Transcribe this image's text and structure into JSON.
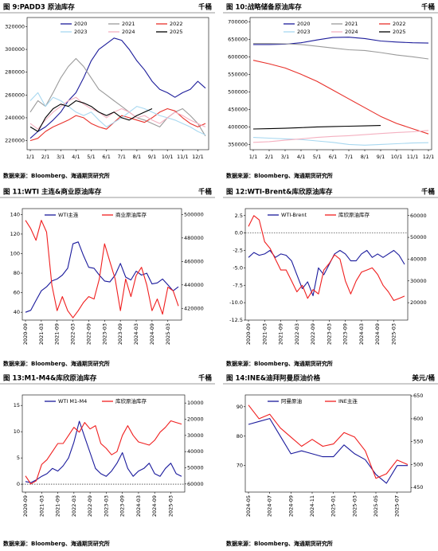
{
  "chart_data": [
    {
      "type": "line",
      "title": "图 9:PADD3 原油库存",
      "unit": "千桶",
      "source": "数据来源：Bloomberg、海通期货研究所",
      "categories": [
        "1/1",
        null,
        "2/1",
        null,
        "3/1",
        null,
        "4/1",
        null,
        "5/1",
        null,
        "6/1",
        null,
        "7/1",
        null,
        "8/1",
        null,
        "9/1",
        null,
        "10/1",
        null,
        "11/1",
        null,
        "12/1",
        null
      ],
      "ylim": [
        212000,
        328000
      ],
      "yticks": [
        220000,
        240000,
        260000,
        280000,
        300000,
        320000
      ],
      "series": [
        {
          "name": "2020",
          "color": "#1c1c9a",
          "values": [
            222000,
            228000,
            232000,
            238000,
            245000,
            255000,
            262000,
            275000,
            290000,
            300000,
            305000,
            310000,
            308000,
            300000,
            290000,
            282000,
            272000,
            265000,
            262000,
            258000,
            262000,
            265000,
            272000,
            266000
          ]
        },
        {
          "name": "2021",
          "color": "#9a9a9a",
          "values": [
            245000,
            255000,
            250000,
            262000,
            275000,
            285000,
            292000,
            285000,
            275000,
            265000,
            260000,
            255000,
            250000,
            245000,
            240000,
            238000,
            235000,
            232000,
            240000,
            245000,
            248000,
            242000,
            235000,
            224000
          ]
        },
        {
          "name": "2022",
          "color": "#e8302a",
          "values": [
            220000,
            222000,
            228000,
            232000,
            235000,
            238000,
            242000,
            240000,
            235000,
            232000,
            230000,
            236000,
            242000,
            240000,
            238000,
            236000,
            240000,
            245000,
            248000,
            246000,
            240000,
            235000,
            232000,
            235000
          ]
        },
        {
          "name": "2023",
          "color": "#a8d8f0",
          "values": [
            255000,
            262000,
            250000,
            258000,
            255000,
            250000,
            245000,
            242000,
            245000,
            238000,
            232000,
            236000,
            240000,
            245000,
            250000,
            248000,
            245000,
            242000,
            240000,
            238000,
            235000,
            232000,
            228000,
            225000
          ]
        },
        {
          "name": "2024",
          "color": "#f4b0c0",
          "values": [
            235000,
            230000,
            238000,
            245000,
            250000,
            255000,
            258000,
            252000,
            248000,
            245000,
            240000,
            245000,
            248000,
            245000,
            240000,
            242000,
            238000,
            235000,
            240000,
            245000,
            242000,
            238000,
            235000,
            232000
          ]
        },
        {
          "name": "2025",
          "color": "#000000",
          "values": [
            232000,
            228000,
            240000,
            248000,
            252000,
            250000,
            255000,
            253000,
            250000,
            245000,
            242000,
            245000,
            240000,
            238000,
            242000,
            245000,
            248000,
            null,
            null,
            null,
            null,
            null,
            null,
            null
          ]
        }
      ]
    },
    {
      "type": "line",
      "title": "图 10:战略储备原油库存",
      "unit": "千桶",
      "source": "数据来源：Bloomberg、海通期货研究所",
      "categories": [
        "1/1",
        "2/1",
        "3/1",
        "4/1",
        "5/1",
        "6/1",
        "7/1",
        "8/1",
        "9/1",
        "10/1",
        "11/1",
        "12/1"
      ],
      "ylim": [
        335000,
        712000
      ],
      "yticks": [
        350000,
        400000,
        450000,
        500000,
        550000,
        600000,
        650000,
        700000
      ],
      "series": [
        {
          "name": "2020",
          "color": "#1c1c9a",
          "values": [
            635000,
            635000,
            636000,
            640000,
            648000,
            655000,
            656000,
            652000,
            645000,
            642000,
            640000,
            639000
          ]
        },
        {
          "name": "2021",
          "color": "#9a9a9a",
          "values": [
            638000,
            638000,
            637000,
            635000,
            630000,
            625000,
            620000,
            618000,
            612000,
            605000,
            600000,
            594000
          ]
        },
        {
          "name": "2022",
          "color": "#e8302a",
          "values": [
            590000,
            580000,
            568000,
            550000,
            530000,
            505000,
            480000,
            455000,
            430000,
            410000,
            395000,
            380000
          ]
        },
        {
          "name": "2023",
          "color": "#a8d8f0",
          "values": [
            370000,
            368000,
            366000,
            364000,
            360000,
            356000,
            350000,
            348000,
            350000,
            352000,
            354000,
            355000
          ]
        },
        {
          "name": "2024",
          "color": "#f4b0c0",
          "values": [
            356000,
            358000,
            362000,
            366000,
            370000,
            373000,
            375000,
            378000,
            381000,
            384000,
            386000,
            390000
          ]
        },
        {
          "name": "2025",
          "color": "#000000",
          "values": [
            394000,
            395000,
            396000,
            398000,
            400000,
            401000,
            402000,
            403000,
            404000,
            null,
            null,
            null
          ]
        }
      ]
    },
    {
      "type": "line",
      "title": "图 11:WTI 主连&商业原油库存",
      "unit": "千桶",
      "source": "数据来源：Bloomberg、海通期货研究所",
      "categories": [
        "2020-09",
        null,
        null,
        "2021-03",
        null,
        null,
        "2021-09",
        null,
        null,
        "2022-03",
        null,
        null,
        "2022-09",
        null,
        null,
        "2023-03",
        null,
        null,
        "2023-09",
        null,
        null,
        "2024-03",
        null,
        null,
        "2024-09",
        null,
        null,
        "2025-03",
        null,
        null
      ],
      "ylim": [
        32,
        146
      ],
      "yticks": [
        40,
        60,
        80,
        100,
        120,
        140
      ],
      "y2lim": [
        410000,
        505000
      ],
      "y2ticks": [
        420000,
        440000,
        460000,
        480000,
        500000
      ],
      "series": [
        {
          "name": "WTI主连",
          "color": "#1a1a9c",
          "values": [
            40,
            42,
            52,
            62,
            66,
            72,
            74,
            78,
            85,
            110,
            112,
            98,
            86,
            85,
            78,
            72,
            71,
            78,
            90,
            76,
            73,
            82,
            78,
            80,
            69,
            70,
            74,
            68,
            62,
            66
          ]
        },
        {
          "name": "商业原油库存",
          "color": "#f01e1e",
          "axis": "y2",
          "values": [
            495000,
            488000,
            478000,
            495000,
            485000,
            440000,
            418000,
            430000,
            418000,
            412000,
            418000,
            425000,
            430000,
            428000,
            445000,
            475000,
            460000,
            445000,
            418000,
            445000,
            430000,
            448000,
            455000,
            440000,
            418000,
            428000,
            415000,
            438000,
            435000,
            422000
          ]
        }
      ]
    },
    {
      "type": "line",
      "title": "图 12:WTI-Brent&库欣原油库存",
      "unit": "千桶",
      "source": "数据来源：Bloomberg、海通期货研究所",
      "categories": [
        "2020-09",
        null,
        null,
        "2021-03",
        null,
        null,
        "2021-09",
        null,
        null,
        "2022-03",
        null,
        null,
        "2022-09",
        null,
        null,
        "2023-03",
        null,
        null,
        "2023-09",
        null,
        null,
        "2024-03",
        null,
        null,
        "2024-09",
        null,
        null,
        "2025-03",
        null,
        null
      ],
      "ylim": [
        -12.5,
        3.5
      ],
      "yticks": [
        -12.5,
        {
          "value": -10,
          "label": "-10.0"
        },
        -7.5,
        {
          "value": -5,
          "label": "-5.0"
        },
        -2.5,
        {
          "value": 0,
          "label": "0.0"
        },
        2.5
      ],
      "hline": 0,
      "y2lim": [
        12000,
        63200
      ],
      "y2ticks": [
        20000,
        30000,
        40000,
        50000,
        60000
      ],
      "series": [
        {
          "name": "WTI-Brent",
          "color": "#1a1a9c",
          "values": [
            -3.5,
            -2.8,
            -3.2,
            -3,
            -2.5,
            -3.5,
            -3,
            -3.2,
            -4,
            -6,
            -8,
            -7,
            -9,
            -5,
            -6,
            -4.5,
            -3,
            -2.5,
            -3,
            -4,
            -4,
            -3,
            -2.5,
            -3.5,
            -3,
            -3.5,
            -3,
            -2.5,
            -3.2,
            -4.5
          ]
        },
        {
          "name": "库欣原油库存",
          "color": "#f01e1e",
          "axis": "y2",
          "values": [
            55000,
            60000,
            58000,
            48000,
            45000,
            40000,
            35000,
            35000,
            30000,
            25000,
            28000,
            22000,
            26000,
            24000,
            35000,
            38000,
            42000,
            40000,
            30000,
            24000,
            30000,
            34000,
            35000,
            36000,
            33000,
            28000,
            25000,
            21000,
            22000,
            23000
          ]
        }
      ]
    },
    {
      "type": "line",
      "title": "图 13:M1-M4&库欣原油库存",
      "unit": "千桶",
      "source": "数据来源：Bloomberg、海通期货研究所",
      "categories": [
        "2020-09",
        null,
        null,
        "2021-03",
        null,
        null,
        "2021-09",
        null,
        null,
        "2022-03",
        null,
        null,
        "2022-09",
        null,
        null,
        "2023-03",
        null,
        null,
        "2023-09",
        null,
        null,
        "2024-03",
        null,
        null,
        "2024-09",
        null,
        null,
        "2025-03",
        null,
        null
      ],
      "ylim": [
        -1.5,
        17
      ],
      "yticks": [
        0,
        5,
        10,
        15
      ],
      "hline": 0,
      "y2lim": [
        65000,
        5000
      ],
      "y2ticks": [
        10000,
        20000,
        30000,
        40000,
        50000,
        60000
      ],
      "series": [
        {
          "name": "WTI M1-M4",
          "color": "#1a1a9c",
          "values": [
            0.5,
            0.3,
            0.8,
            1.5,
            2,
            3,
            2.5,
            3.5,
            5,
            8,
            12,
            9,
            6,
            3,
            2,
            1.5,
            2.5,
            4,
            6,
            3,
            1.5,
            2.5,
            3,
            4,
            2,
            1.5,
            3,
            4,
            2,
            1.5
          ]
        },
        {
          "name": "库欣原油库存",
          "color": "#f01e1e",
          "axis": "y2",
          "values": [
            55000,
            60000,
            58000,
            48000,
            45000,
            40000,
            35000,
            35000,
            30000,
            25000,
            28000,
            22000,
            26000,
            24000,
            35000,
            38000,
            42000,
            40000,
            30000,
            24000,
            30000,
            34000,
            35000,
            36000,
            33000,
            28000,
            25000,
            21000,
            22000,
            23000
          ]
        }
      ]
    },
    {
      "type": "line",
      "title": "图 14:INE&迪拜阿曼原油价格",
      "unit": "美元/桶",
      "source": "数据来源：Bloomberg、海通期货研究所",
      "categories": [
        "2024-05",
        null,
        "2024-07",
        null,
        "2024-09",
        null,
        "2024-11",
        null,
        "2025-01",
        null,
        "2025-03",
        null,
        "2025-05",
        null,
        "2025-07",
        null
      ],
      "ylim": [
        61,
        94
      ],
      "yticks": [
        70,
        80,
        90
      ],
      "y2lim": [
        440,
        652
      ],
      "y2ticks": [
        450,
        500,
        550,
        600,
        650
      ],
      "series": [
        {
          "name": "阿曼原油",
          "color": "#1a1a9c",
          "values": [
            84,
            85,
            86,
            80,
            74,
            75,
            74,
            73,
            73,
            77,
            74,
            72,
            67,
            64,
            70,
            70
          ]
        },
        {
          "name": "INE主连",
          "color": "#f01e1e",
          "axis": "y2",
          "values": [
            630,
            600,
            610,
            580,
            560,
            540,
            555,
            540,
            545,
            570,
            560,
            530,
            470,
            480,
            510,
            500
          ]
        }
      ]
    }
  ]
}
